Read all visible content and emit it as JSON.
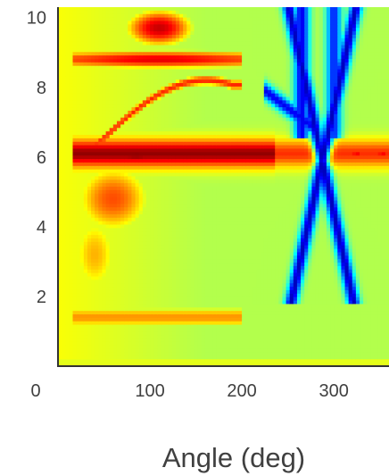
{
  "chart_data": {
    "type": "heatmap",
    "title": "",
    "xlabel": "Angle (deg)",
    "ylabel": "",
    "xlim": [
      0,
      360
    ],
    "ylim": [
      0,
      10.3
    ],
    "x_ticks": [
      0,
      100,
      200,
      300
    ],
    "x_tick_labels": [
      "0",
      "100",
      "200",
      "300"
    ],
    "y_ticks": [
      2,
      4,
      6,
      8,
      10
    ],
    "y_tick_labels": [
      "2",
      "4",
      "6",
      "8",
      "10"
    ],
    "colormap": "jet",
    "value_range": [
      0,
      1
    ],
    "grid": false,
    "legend": "none",
    "features": [
      {
        "name": "strong horizontal band",
        "x_range": [
          15,
          360
        ],
        "y": 6.1,
        "level": 1.0,
        "peak_x": [
          25,
          145
        ]
      },
      {
        "name": "upper band",
        "x_range": [
          20,
          190
        ],
        "y": 8.8,
        "level": 0.9
      },
      {
        "name": "top blob",
        "x_center": 110,
        "y_center": 9.6,
        "level": 0.92
      },
      {
        "name": "arc ridge",
        "from": [
          40,
          6.3
        ],
        "to": [
          185,
          8.0
        ],
        "level": 0.85
      },
      {
        "name": "lower warm band",
        "x_range": [
          20,
          230
        ],
        "y": 1.4,
        "level": 0.72
      },
      {
        "name": "cool streaks",
        "x_range": [
          235,
          360
        ],
        "y_range": [
          2,
          10.3
        ],
        "level": 0.05
      }
    ]
  }
}
